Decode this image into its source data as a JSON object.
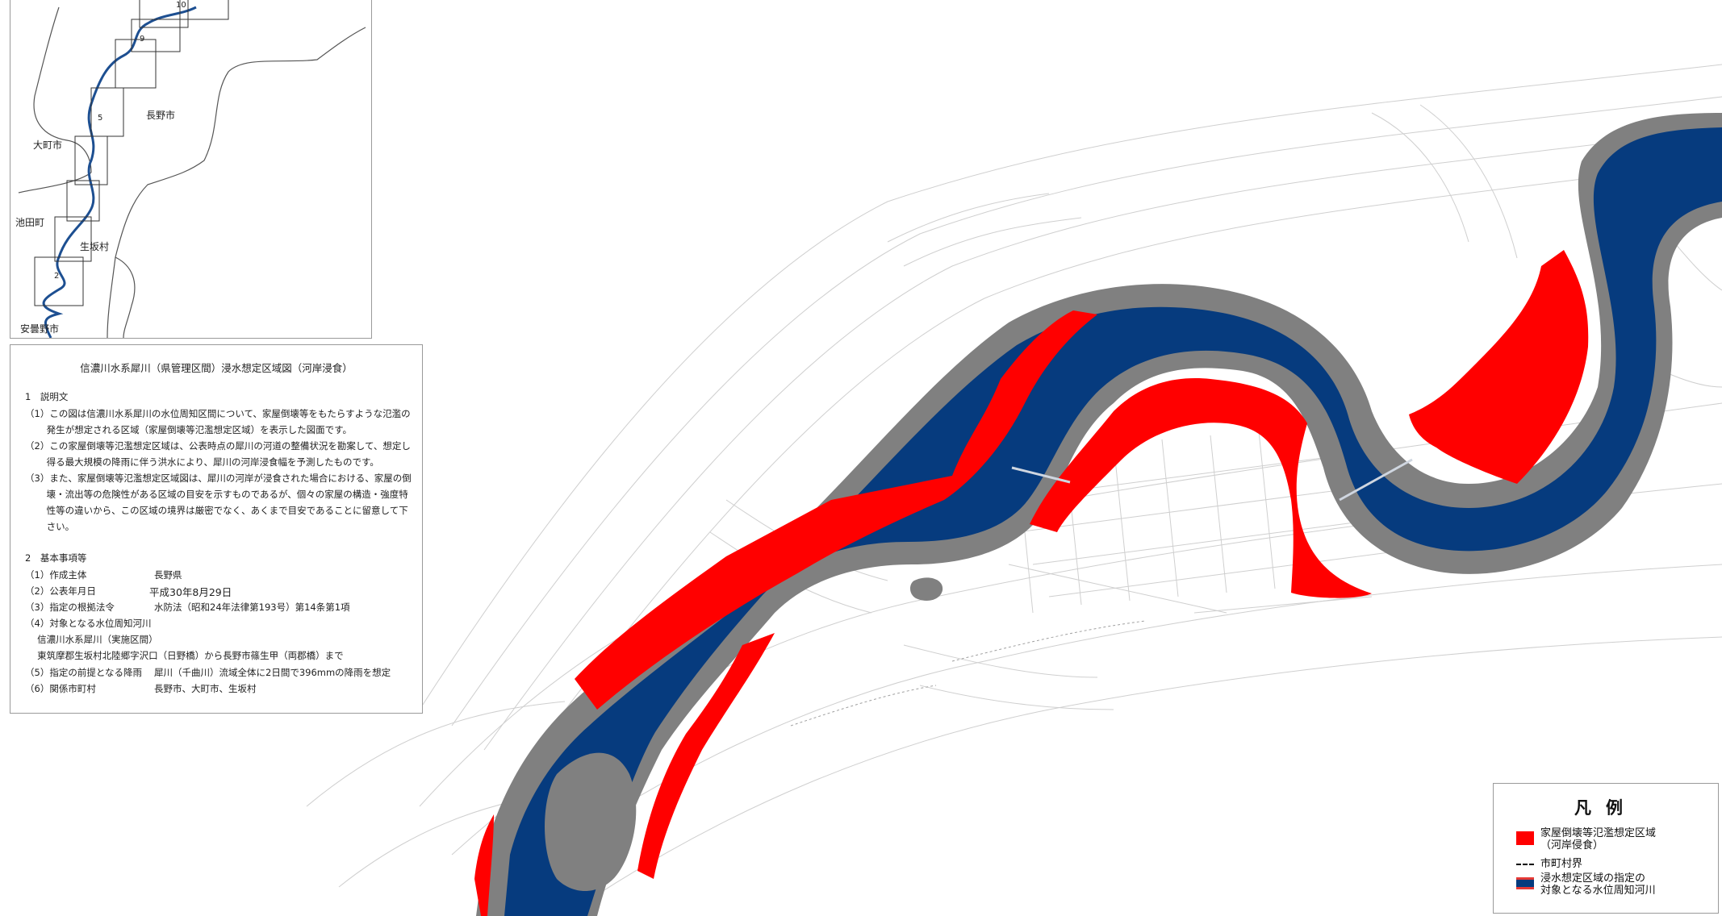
{
  "index_map": {
    "places": [
      "長野市",
      "大町市",
      "池田町",
      "生坂村",
      "安曇野市"
    ],
    "sheet_numbers": [
      "10",
      "9",
      "5",
      "2"
    ]
  },
  "description": {
    "title": "信濃川水系犀川（県管理区間）浸水想定区域図（河岸浸食）",
    "section1_heading": "1　説明文",
    "section1_lines": [
      "（1）この図は信濃川水系犀川の水位周知区間について、家屋倒壊等をもたらすような氾濫の",
      "　　 発生が想定される区域（家屋倒壊等氾濫想定区域）を表示した図面です。",
      "（2）この家屋倒壊等氾濫想定区域は、公表時点の犀川の河道の整備状況を勘案して、想定し",
      "　　 得る最大規模の降雨に伴う洪水により、犀川の河岸浸食幅を予測したものです。",
      "（3）また、家屋倒壊等氾濫想定区域図は、犀川の河岸が浸食された場合における、家屋の倒",
      "　　 壊・流出等の危険性がある区域の目安を示すものであるが、個々の家屋の構造・強度特",
      "　　 性等の違いから、この区域の境界は厳密でなく、あくまで目安であることに留意して下",
      "　　 さい。"
    ],
    "section2_heading": "2　基本事項等",
    "items": [
      {
        "label": "（1）作成主体",
        "value": "長野県"
      },
      {
        "label": "（2）公表年月日",
        "value": "平成30年8月29日"
      },
      {
        "label": "（3）指定の根拠法令",
        "value": "水防法（昭和24年法律第193号）第14条第1項"
      }
    ],
    "item4_lines": [
      "（4）対象となる水位周知河川",
      "　 信濃川水系犀川（実施区間）",
      "　 東筑摩郡生坂村北陸郷字沢口（日野橋）から長野市篠生甲（両郡橋）まで"
    ],
    "items_after": [
      {
        "label": "（5）指定の前提となる降雨",
        "value": "犀川（千曲川）流域全体に2日間で396mmの降雨を想定"
      },
      {
        "label": "（6）関係市町村",
        "value": "長野市、大町市、生坂村"
      }
    ]
  },
  "legend": {
    "title": "凡例",
    "items": [
      {
        "label_line1": "家屋倒壊等氾濫想定区域",
        "label_line2": "（河岸侵食）",
        "color": "#ff0000"
      },
      {
        "label_line1": "市町村界",
        "label_line2": "",
        "color": "#000000"
      },
      {
        "label_line1": "浸水想定区域の指定の",
        "label_line2": "対象となる水位周知河川",
        "color": "#063b7e"
      }
    ]
  },
  "colors": {
    "erosion_zone": "#ff0000",
    "river": "#063b7e",
    "river_bank": "#808080",
    "basemap_lines": "#c8c8c8"
  }
}
